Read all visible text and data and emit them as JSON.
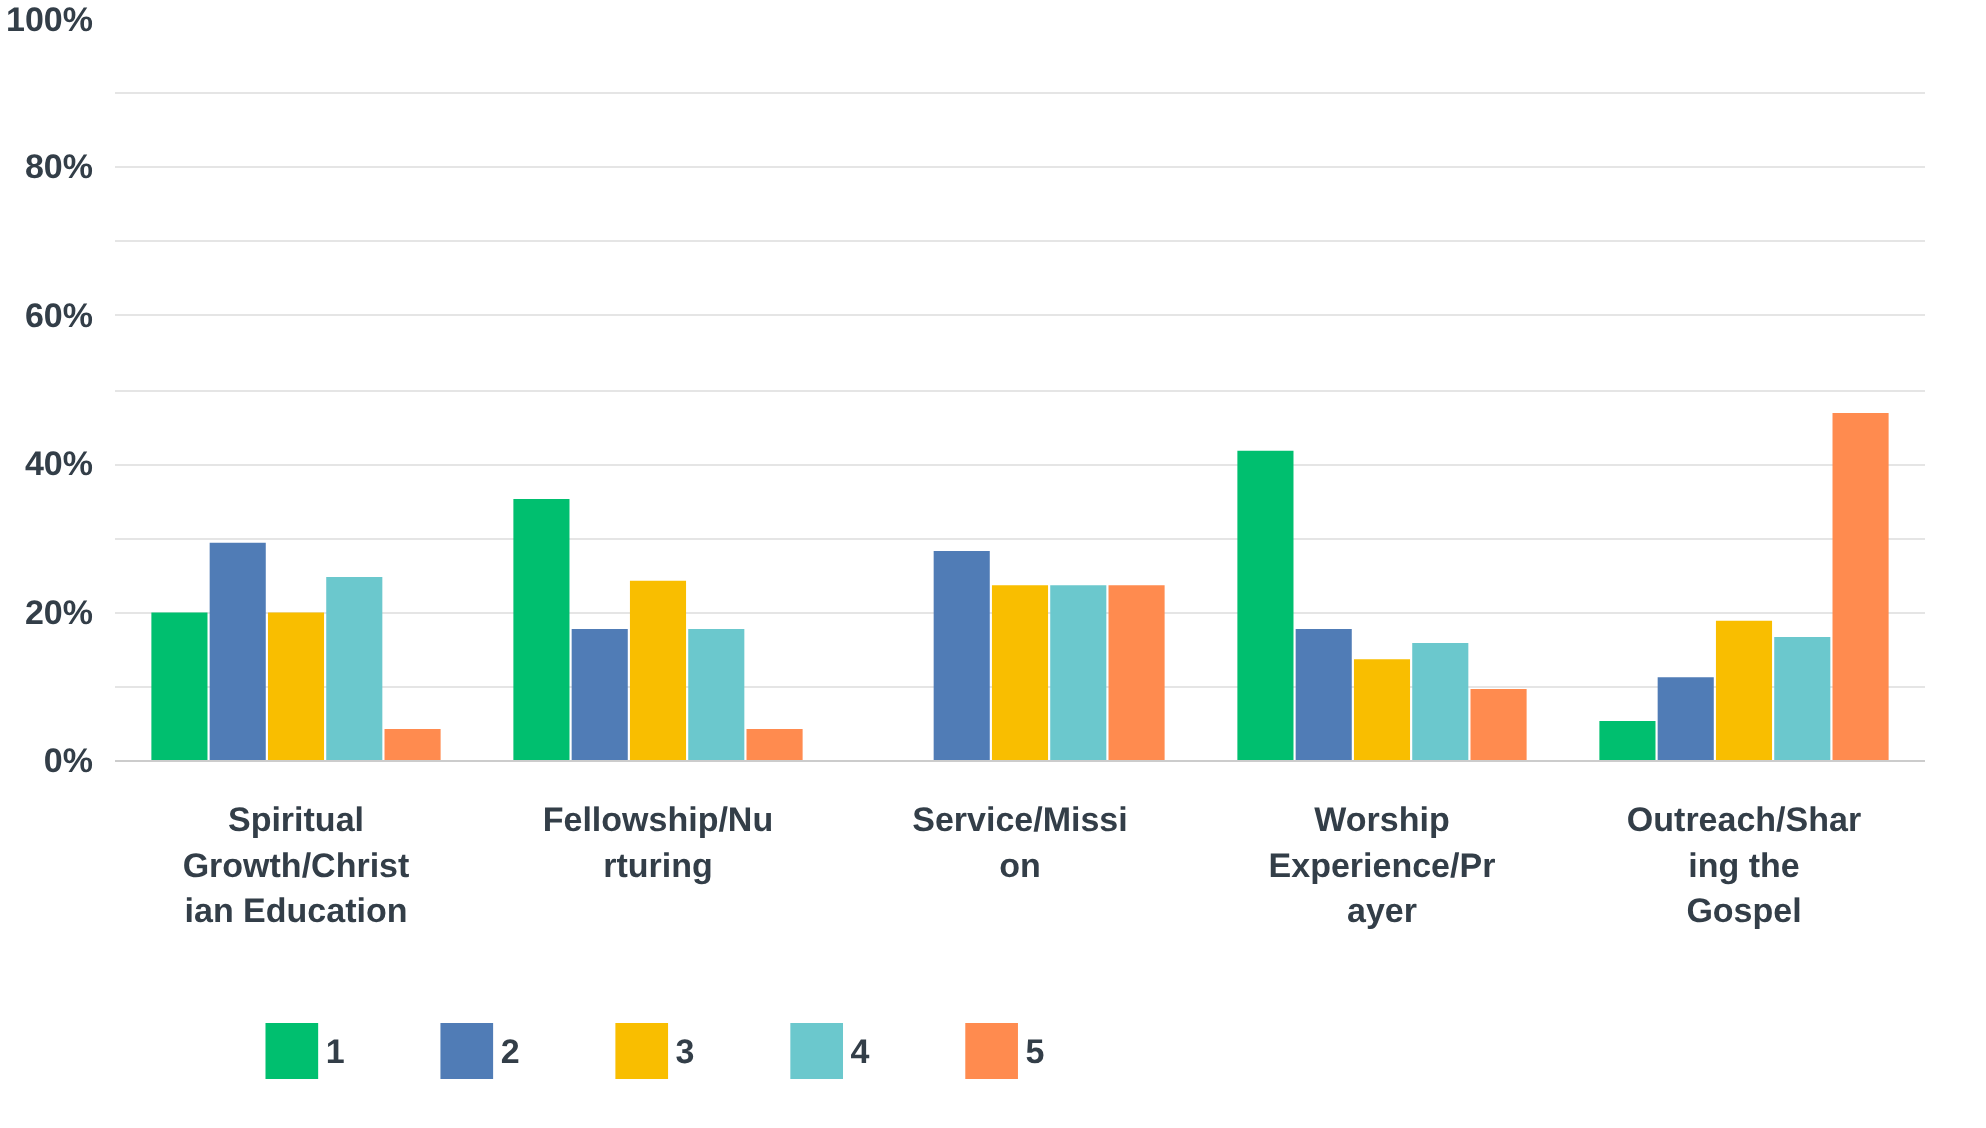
{
  "chart_data": {
    "type": "bar",
    "categories": [
      "Spiritual Growth/Christian Education",
      "Fellowship/Nurturing",
      "Service/Mission",
      "Worship Experience/Prayer",
      "Outreach/Sharing the Gospel"
    ],
    "series": [
      {
        "name": "1",
        "color": "#00bf6f",
        "values": [
          20,
          35.3,
          0,
          41.8,
          5.4
        ]
      },
      {
        "name": "2",
        "color": "#507cb6",
        "values": [
          29.4,
          17.8,
          28.3,
          17.8,
          11.3
        ]
      },
      {
        "name": "3",
        "color": "#f9be00",
        "values": [
          20,
          24.3,
          23.7,
          13.7,
          18.9
        ]
      },
      {
        "name": "4",
        "color": "#6bc8cd",
        "values": [
          24.8,
          17.8,
          23.7,
          15.9,
          16.7
        ]
      },
      {
        "name": "5",
        "color": "#ff8b4f",
        "values": [
          4.3,
          4.3,
          23.7,
          9.7,
          46.9
        ]
      }
    ],
    "ylim": [
      0,
      100
    ],
    "yticks": [
      {
        "value": 0,
        "label": "0%"
      },
      {
        "value": 10,
        "label": null
      },
      {
        "value": 20,
        "label": "20%"
      },
      {
        "value": 30,
        "label": null
      },
      {
        "value": 40,
        "label": "40%"
      },
      {
        "value": 50,
        "label": null
      },
      {
        "value": 60,
        "label": "60%"
      },
      {
        "value": 70,
        "label": null
      },
      {
        "value": 80,
        "label": "80%"
      },
      {
        "value": 90,
        "label": null
      },
      {
        "value": 100,
        "label": "100%"
      }
    ],
    "grid": "y",
    "legend": "bottom"
  }
}
